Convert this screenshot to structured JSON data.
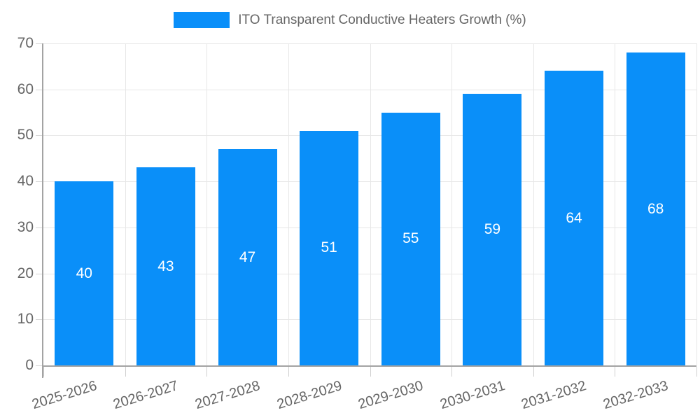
{
  "chart_data": {
    "type": "bar",
    "legend": "ITO Transparent Conductive Heaters Growth (%)",
    "legend_position": "top-center",
    "categories": [
      "2025-2026",
      "2026-2027",
      "2027-2028",
      "2028-2029",
      "2029-2030",
      "2030-2031",
      "2031-2032",
      "2032-2033"
    ],
    "values": [
      40,
      43,
      47,
      51,
      55,
      59,
      64,
      68
    ],
    "value_labels_inside_bars": true,
    "xlabel": "",
    "ylabel": "",
    "ylim": [
      0,
      70
    ],
    "yticks": [
      0,
      10,
      20,
      30,
      40,
      50,
      60,
      70
    ],
    "grid": true,
    "colors": {
      "bar": "#0A8FF9",
      "bar_value_text": "#ffffff",
      "axis_text": "#666666",
      "legend_text": "#666666",
      "gridline": "#e7e7e7",
      "axis_line": "#a3a3a3",
      "background": "#ffffff"
    }
  }
}
